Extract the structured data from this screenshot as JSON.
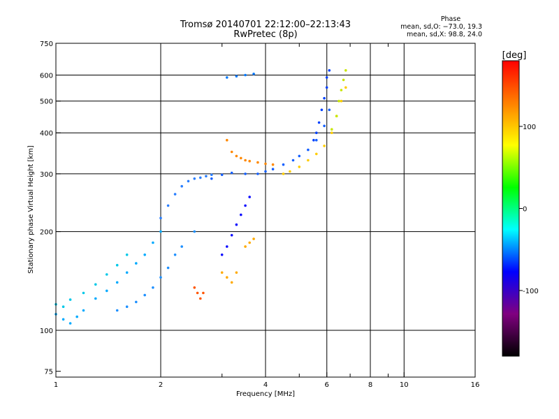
{
  "chart_data": {
    "type": "scatter",
    "title": "Tromsø 20140701 22:12:00–22:13:43",
    "subtitle": "RwPretec (8p)",
    "xlabel": "Frequency [MHz]",
    "ylabel": "Stationary phase Virtual Height [km]",
    "x_scale": "log",
    "y_scale": "log",
    "xlim": [
      1,
      16
    ],
    "ylim": [
      72,
      750
    ],
    "x_ticks": [
      1,
      2,
      4,
      6,
      8,
      10,
      16
    ],
    "x_grid": [
      2,
      4,
      6,
      8,
      10
    ],
    "x_minor": [
      3,
      5,
      7,
      9
    ],
    "y_ticks": [
      75,
      100,
      200,
      300,
      400,
      500,
      600,
      750
    ],
    "y_grid": [
      100,
      200,
      300,
      400,
      500,
      600
    ],
    "grid": true,
    "phase_stats": {
      "heading": "Phase",
      "line_o": "mean, sd,O: −73.0, 19.3",
      "line_x": "mean, sd,X:  98.8, 24.0"
    },
    "colorbar": {
      "label": "[deg]",
      "range": [
        -180,
        180
      ],
      "ticks": [
        100,
        0,
        -100
      ],
      "colors": [
        "#ff0000",
        "#ff8000",
        "#ffff00",
        "#00ff00",
        "#00ffff",
        "#0000ff",
        "#800080",
        "#000000"
      ]
    },
    "series": [
      {
        "color": "#00aaff",
        "x": [
          1.0,
          1.05,
          1.1,
          1.15,
          1.2,
          1.3,
          1.4,
          1.5,
          1.6,
          1.7,
          1.8,
          1.9,
          2.0
        ],
        "y": [
          112,
          108,
          105,
          110,
          115,
          125,
          132,
          140,
          150,
          160,
          170,
          185,
          200
        ]
      },
      {
        "color": "#00c8e8",
        "x": [
          1.0,
          1.05,
          1.1,
          1.2,
          1.3,
          1.4,
          1.5,
          1.6
        ],
        "y": [
          120,
          118,
          124,
          130,
          138,
          148,
          158,
          170
        ]
      },
      {
        "color": "#1e90ff",
        "x": [
          1.5,
          1.6,
          1.7,
          1.8,
          1.9,
          2.0,
          2.1,
          2.2,
          2.3,
          2.5
        ],
        "y": [
          115,
          118,
          122,
          128,
          135,
          145,
          155,
          170,
          180,
          200
        ]
      },
      {
        "color": "#2a7fff",
        "x": [
          2.0,
          2.1,
          2.2,
          2.3,
          2.4,
          2.5,
          2.6,
          2.7,
          2.8
        ],
        "y": [
          220,
          240,
          260,
          275,
          285,
          290,
          292,
          295,
          298
        ]
      },
      {
        "color": "#1560ff",
        "x": [
          2.8,
          3.0,
          3.2,
          3.5,
          3.8,
          4.0,
          4.2,
          4.5,
          4.8,
          5.0,
          5.3,
          5.6,
          5.9,
          6.1
        ],
        "y": [
          290,
          298,
          302,
          300,
          300,
          305,
          310,
          320,
          330,
          340,
          355,
          380,
          420,
          470
        ]
      },
      {
        "color": "#0040ff",
        "x": [
          5.5,
          5.6,
          5.7,
          5.8,
          5.9,
          6.0,
          6.0,
          6.1
        ],
        "y": [
          380,
          400,
          430,
          470,
          510,
          550,
          590,
          620
        ]
      },
      {
        "color": "#ff8800",
        "x": [
          3.1,
          3.2,
          3.3,
          3.4,
          3.5,
          3.6,
          3.8,
          4.0,
          4.2
        ],
        "y": [
          380,
          350,
          340,
          335,
          330,
          328,
          325,
          322,
          320
        ]
      },
      {
        "color": "#ffcc00",
        "x": [
          4.5,
          4.7,
          5.0,
          5.3,
          5.6,
          5.9,
          6.2,
          6.4,
          6.6,
          6.8
        ],
        "y": [
          300,
          305,
          315,
          330,
          345,
          365,
          400,
          450,
          500,
          550
        ]
      },
      {
        "color": "#c8e600",
        "x": [
          6.2,
          6.4,
          6.5,
          6.6,
          6.7,
          6.8
        ],
        "y": [
          410,
          450,
          500,
          540,
          580,
          620
        ]
      },
      {
        "color": "#1010ff",
        "x": [
          3.0,
          3.1,
          3.2,
          3.3,
          3.4,
          3.5,
          3.6
        ],
        "y": [
          170,
          180,
          195,
          210,
          225,
          240,
          255
        ]
      },
      {
        "color": "#ffaa00",
        "x": [
          3.0,
          3.1,
          3.2,
          3.3,
          3.5,
          3.6,
          3.7
        ],
        "y": [
          150,
          145,
          140,
          150,
          180,
          185,
          190
        ]
      },
      {
        "color": "#0078ff",
        "x": [
          3.1,
          3.3,
          3.5,
          3.7
        ],
        "y": [
          590,
          595,
          600,
          605
        ]
      },
      {
        "color": "#ff5500",
        "x": [
          2.5,
          2.55,
          2.6,
          2.65
        ],
        "y": [
          135,
          130,
          125,
          130
        ]
      }
    ]
  }
}
